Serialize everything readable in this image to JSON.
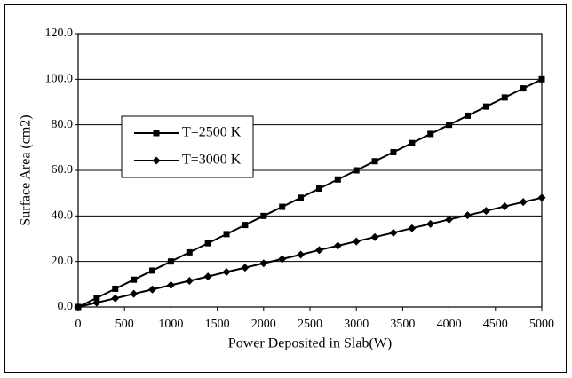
{
  "chart_data": {
    "type": "line",
    "x_label": "Power Deposited in Slab(W)",
    "y_label": "Surface Area (cm2)",
    "x": [
      0,
      200,
      400,
      600,
      800,
      1000,
      1200,
      1400,
      1600,
      1800,
      2000,
      2200,
      2400,
      2600,
      2800,
      3000,
      3200,
      3400,
      3600,
      3800,
      4000,
      4200,
      4400,
      4600,
      4800,
      5000
    ],
    "series": [
      {
        "name": "T=2500 K",
        "color": "#000000",
        "marker": "square",
        "values": [
          0,
          4,
          8,
          12,
          16,
          20,
          24,
          28,
          32,
          36,
          40,
          44,
          48,
          52,
          56,
          60,
          64,
          68,
          72,
          76,
          80,
          84,
          88,
          92,
          96,
          100
        ]
      },
      {
        "name": "T=3000 K",
        "color": "#000000",
        "marker": "diamond",
        "values": [
          0,
          1.9,
          3.8,
          5.8,
          7.7,
          9.6,
          11.5,
          13.4,
          15.4,
          17.3,
          19.2,
          21.1,
          23.0,
          25.0,
          26.9,
          28.8,
          30.7,
          32.6,
          34.6,
          36.5,
          38.4,
          40.3,
          42.2,
          44.2,
          46.1,
          48.0
        ]
      }
    ],
    "xlim": [
      0,
      5000
    ],
    "xticks": [
      0,
      500,
      1000,
      1500,
      2000,
      2500,
      3000,
      3500,
      4000,
      4500,
      5000
    ],
    "ylim": [
      0,
      120
    ],
    "yticks": [
      {
        "value": 0,
        "label": "0.0"
      },
      {
        "value": 20,
        "label": "20.0"
      },
      {
        "value": 40,
        "label": "40.0"
      },
      {
        "value": 60,
        "label": "60.0"
      },
      {
        "value": 80,
        "label": "80.0"
      },
      {
        "value": 100,
        "label": "100.0"
      },
      {
        "value": 120,
        "label": "120.0"
      }
    ],
    "grid": true,
    "legend_position": "upper left"
  }
}
